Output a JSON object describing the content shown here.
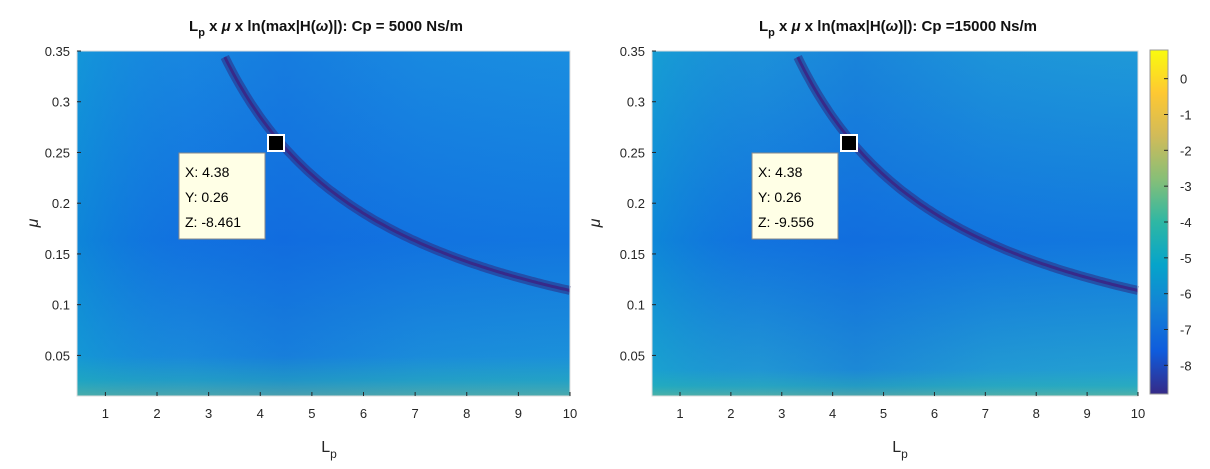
{
  "chart_data": [
    {
      "type": "heatmap",
      "id": "left",
      "title": {
        "main": "L",
        "sub": "p",
        "rest_parts": [
          " x ",
          "μ",
          " x ln(max|H(",
          "ω",
          ")|): Cp = 5000 Ns/m"
        ]
      },
      "xlabel": {
        "main": "L",
        "sub": "p"
      },
      "ylabel": "μ",
      "xlim": [
        0.45,
        10
      ],
      "ylim": [
        0.01,
        0.35
      ],
      "xticks": [
        "1",
        "2",
        "3",
        "4",
        "5",
        "6",
        "7",
        "8",
        "9",
        "10"
      ],
      "yticks": [
        "0.05",
        "0.1",
        "0.15",
        "0.2",
        "0.25",
        "0.3",
        "0.35"
      ],
      "valley_curve": "μ·L_p ≈ 1.14",
      "datatip": {
        "x": 4.38,
        "y": 0.26,
        "z": -8.461,
        "lines": [
          "X: 4.38",
          "Y: 0.26",
          "Z: -8.461"
        ]
      }
    },
    {
      "type": "heatmap",
      "id": "right",
      "title": {
        "main": "L",
        "sub": "p",
        "rest_parts": [
          " x ",
          "μ",
          " x ln(max|H(",
          "ω",
          ")|): Cp =15000 Ns/m"
        ]
      },
      "xlabel": {
        "main": "L",
        "sub": "p"
      },
      "ylabel": "μ",
      "xlim": [
        0.45,
        10
      ],
      "ylim": [
        0.01,
        0.35
      ],
      "xticks": [
        "1",
        "2",
        "3",
        "4",
        "5",
        "6",
        "7",
        "8",
        "9",
        "10"
      ],
      "yticks": [
        "0.05",
        "0.1",
        "0.15",
        "0.2",
        "0.25",
        "0.3",
        "0.35"
      ],
      "valley_curve": "μ·L_p ≈ 1.14",
      "datatip": {
        "x": 4.38,
        "y": 0.26,
        "z": -9.556,
        "lines": [
          "X: 4.38",
          "Y: 0.26",
          "Z: -9.556"
        ]
      },
      "colorbar": {
        "colormap": "parula",
        "range": [
          -8.8,
          0.8
        ],
        "ticks": [
          "0",
          "-1",
          "-2",
          "-3",
          "-4",
          "-5",
          "-6",
          "-7",
          "-8"
        ],
        "tick_values": [
          0,
          -1,
          -2,
          -3,
          -4,
          -5,
          -6,
          -7,
          -8
        ],
        "stops": [
          "#352a87",
          "#0f5cdd",
          "#1481d6",
          "#06a4ca",
          "#2eb7a4",
          "#87bf77",
          "#d1bb59",
          "#fec832",
          "#f9fb0e"
        ]
      }
    }
  ]
}
